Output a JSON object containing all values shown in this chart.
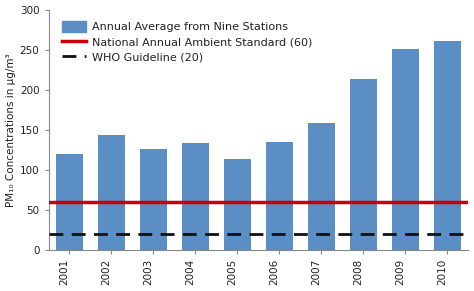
{
  "years": [
    "2001",
    "2002",
    "2003",
    "2004",
    "2005",
    "2006",
    "2007",
    "2008",
    "2009",
    "2010"
  ],
  "values": [
    120,
    143,
    126,
    134,
    114,
    135,
    159,
    214,
    251,
    261
  ],
  "bar_color": "#5b8ec4",
  "national_standard": 60,
  "who_guideline": 20,
  "national_color": "#cc0000",
  "who_color": "#111111",
  "ylabel": "PM₁₀ Concentrations in μg/m³",
  "ylim": [
    0,
    300
  ],
  "yticks": [
    0,
    50,
    100,
    150,
    200,
    250,
    300
  ],
  "legend_bar_label": "Annual Average from Nine Stations",
  "legend_national_label": "National Annual Ambient Standard (60)",
  "legend_who_label": "WHO Guideline (20)",
  "bar_width": 0.65,
  "background_color": "#ffffff",
  "axes_edge_color": "#888888",
  "tick_color": "#222222",
  "label_fontsize": 7.5,
  "tick_fontsize": 7.5,
  "legend_fontsize": 8.0
}
